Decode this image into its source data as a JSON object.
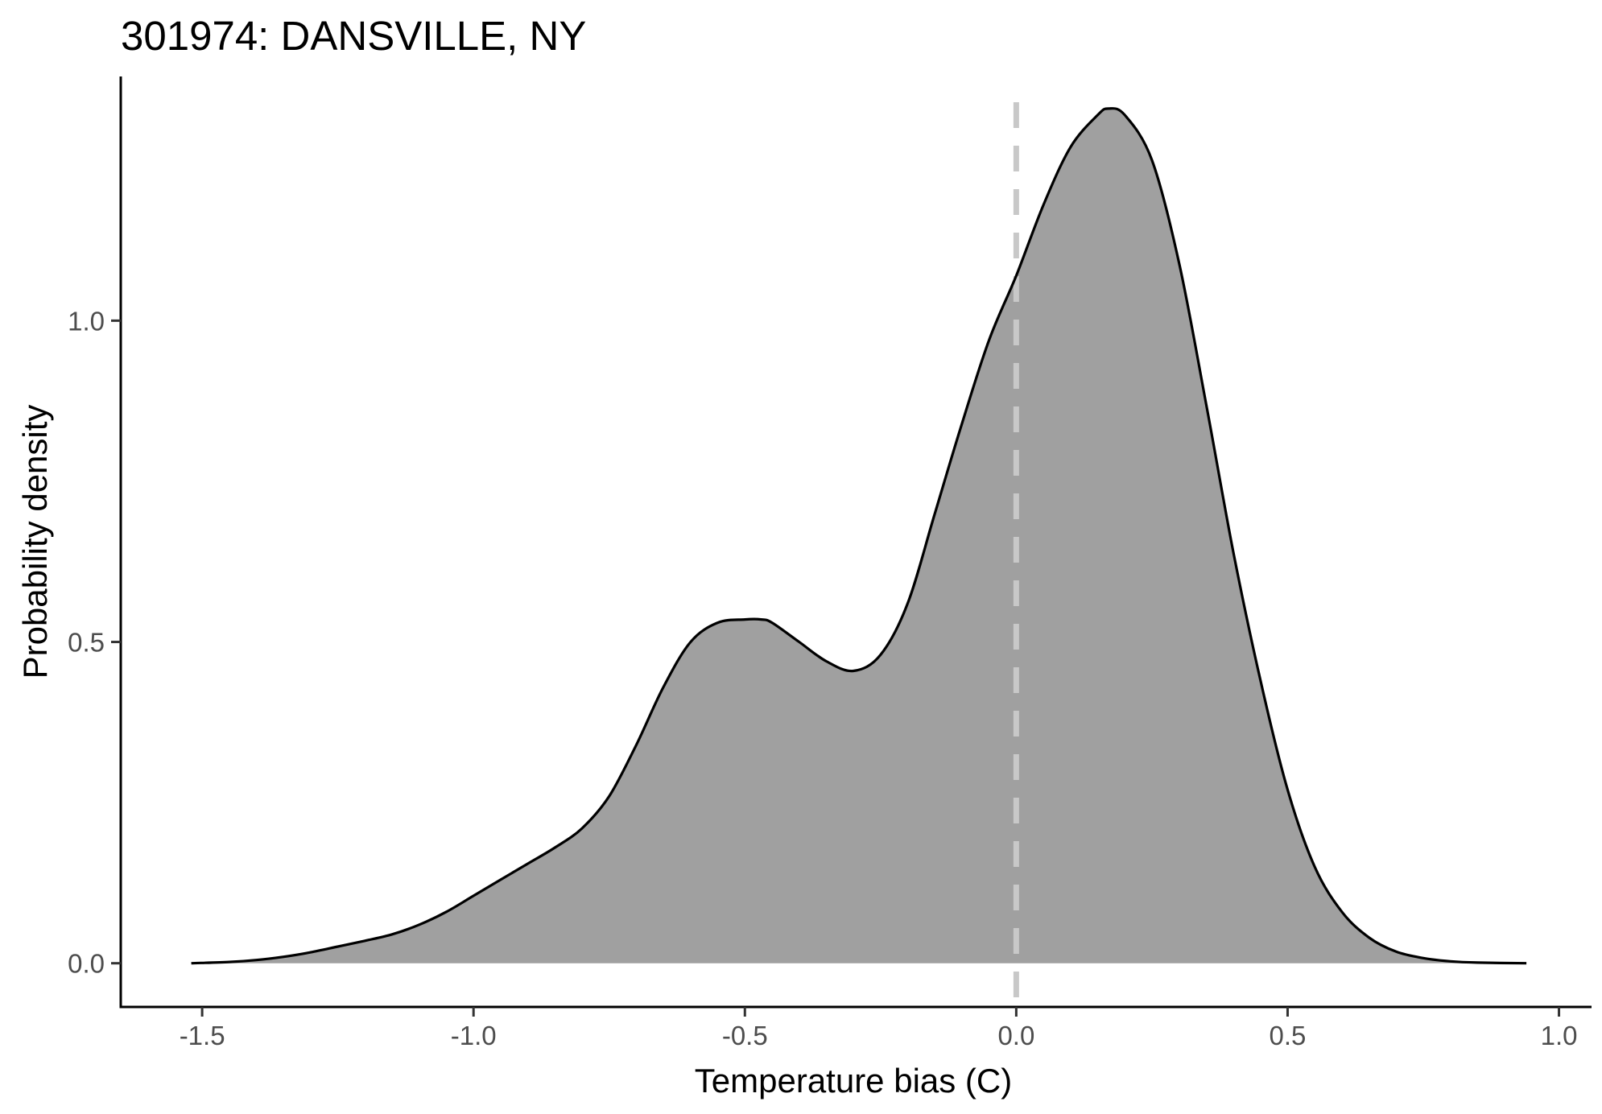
{
  "chart_data": {
    "type": "area",
    "title": "301974: DANSVILLE, NY",
    "xlabel": "Temperature bias (C)",
    "ylabel": "Probability density",
    "xlim": [
      -1.65,
      1.06
    ],
    "ylim": [
      -0.068,
      1.38
    ],
    "x_ticks": [
      "-1.5",
      "-1.0",
      "-0.5",
      "0.0",
      "0.5",
      "1.0"
    ],
    "y_ticks": [
      "0.0",
      "0.5",
      "1.0"
    ],
    "grid": false,
    "legend": "none",
    "reference_line": {
      "x": 0.0,
      "style": "dashed"
    },
    "fill_color": "#a0a0a0",
    "line_color": "#000000",
    "reference_line_color": "#c8c8c8",
    "series": [
      {
        "x": [
          -1.52,
          -1.45,
          -1.4,
          -1.35,
          -1.3,
          -1.25,
          -1.2,
          -1.15,
          -1.1,
          -1.05,
          -1.0,
          -0.95,
          -0.9,
          -0.85,
          -0.8,
          -0.75,
          -0.7,
          -0.65,
          -0.6,
          -0.55,
          -0.5,
          -0.47,
          -0.45,
          -0.4,
          -0.35,
          -0.3,
          -0.25,
          -0.2,
          -0.15,
          -0.1,
          -0.05,
          0.0,
          0.05,
          0.1,
          0.15,
          0.17,
          0.2,
          0.25,
          0.3,
          0.35,
          0.4,
          0.45,
          0.5,
          0.55,
          0.6,
          0.65,
          0.7,
          0.75,
          0.8,
          0.85,
          0.94
        ],
        "y": [
          0.0,
          0.002,
          0.005,
          0.01,
          0.017,
          0.026,
          0.035,
          0.045,
          0.06,
          0.08,
          0.105,
          0.13,
          0.155,
          0.18,
          0.21,
          0.26,
          0.34,
          0.43,
          0.5,
          0.53,
          0.535,
          0.535,
          0.53,
          0.5,
          0.47,
          0.455,
          0.48,
          0.56,
          0.7,
          0.84,
          0.97,
          1.07,
          1.18,
          1.27,
          1.32,
          1.33,
          1.32,
          1.25,
          1.09,
          0.87,
          0.64,
          0.44,
          0.27,
          0.15,
          0.08,
          0.04,
          0.018,
          0.008,
          0.003,
          0.001,
          0.0
        ]
      }
    ]
  }
}
